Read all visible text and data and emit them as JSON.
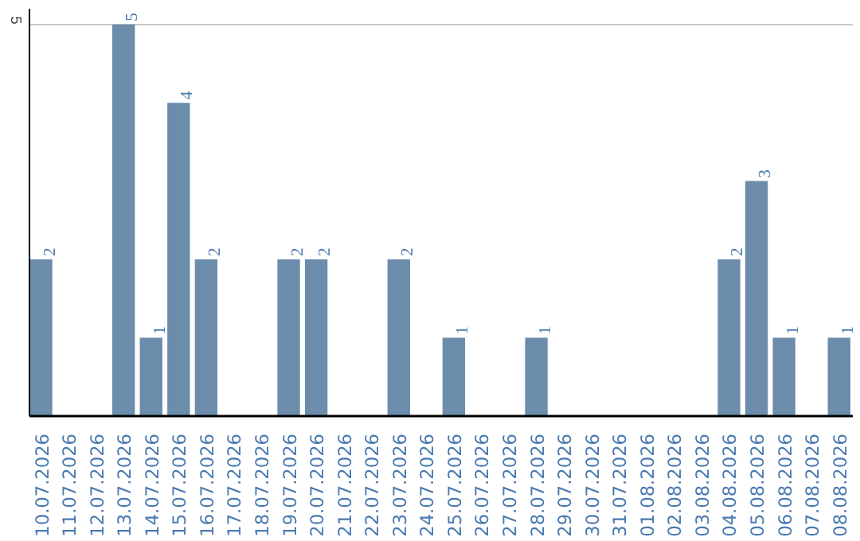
{
  "chart_data": {
    "type": "bar",
    "categories": [
      "10.07.2026",
      "11.07.2026",
      "12.07.2026",
      "13.07.2026",
      "14.07.2026",
      "15.07.2026",
      "16.07.2026",
      "17.07.2026",
      "18.07.2026",
      "19.07.2026",
      "20.07.2026",
      "21.07.2026",
      "22.07.2026",
      "23.07.2026",
      "24.07.2026",
      "25.07.2026",
      "26.07.2026",
      "27.07.2026",
      "28.07.2026",
      "29.07.2026",
      "30.07.2026",
      "31.07.2026",
      "01.08.2026",
      "02.08.2026",
      "03.08.2026",
      "04.08.2026",
      "05.08.2026",
      "06.08.2026",
      "07.08.2026",
      "08.08.2026"
    ],
    "values": [
      2,
      0,
      0,
      5,
      1,
      4,
      2,
      0,
      0,
      2,
      2,
      0,
      0,
      2,
      0,
      1,
      0,
      0,
      1,
      0,
      0,
      0,
      0,
      0,
      0,
      2,
      3,
      1,
      0,
      1
    ],
    "value_labels": [
      "2",
      null,
      null,
      "5",
      "1",
      "4",
      "2",
      null,
      null,
      "2",
      "2",
      null,
      null,
      "2",
      null,
      "1",
      null,
      null,
      "1",
      null,
      null,
      null,
      null,
      null,
      null,
      "2",
      "3",
      "1",
      null,
      "1"
    ],
    "color": "#6b8cab",
    "ylim": [
      0,
      5.2
    ],
    "yticks": [
      5
    ],
    "grid": "y"
  }
}
